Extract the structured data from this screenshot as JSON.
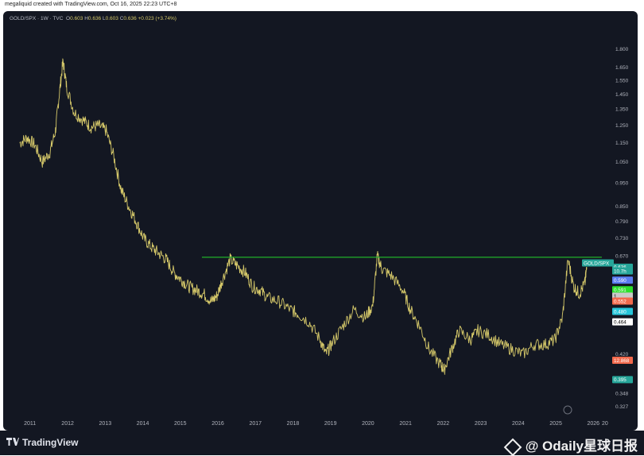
{
  "header": {
    "attribution": "megaliquid created with TradingView.com, Oct 16, 2025 22:23 UTC+8"
  },
  "legend": {
    "symbol": "GOLD/SPX · 1W · TVC",
    "open_label": "O",
    "open": "0.603",
    "high_label": "H",
    "high": "0.636",
    "low_label": "L",
    "low": "0.603",
    "close_label": "C",
    "close": "0.636",
    "change": "+0.023 (+3.74%)"
  },
  "footer": {
    "brand": "TradingView",
    "watermark": "@ Odaily星球日报"
  },
  "colors": {
    "background": "#131722",
    "price_line": "#d6c96a",
    "resistance": "#22c02a",
    "axis_text": "#b2b5be"
  },
  "chart_data": {
    "type": "line",
    "title": "",
    "symbol": "GOLD/SPX",
    "interval": "1W",
    "xlabel": "",
    "ylabel": "",
    "y_scale": "log",
    "ylim": [
      0.31,
      2.0
    ],
    "x_tick_labels": [
      "2011",
      "2012",
      "2013",
      "2014",
      "2015",
      "2016",
      "2017",
      "2018",
      "2019",
      "2020",
      "2021",
      "2022",
      "2023",
      "2024",
      "2025",
      "2026",
      "20"
    ],
    "y_tick_labels": [
      {
        "v": 1.8,
        "label": "1.800"
      },
      {
        "v": 1.65,
        "label": "1.650"
      },
      {
        "v": 1.55,
        "label": "1.550"
      },
      {
        "v": 1.45,
        "label": "1.450"
      },
      {
        "v": 1.35,
        "label": "1.350"
      },
      {
        "v": 1.25,
        "label": "1.250"
      },
      {
        "v": 1.15,
        "label": "1.150"
      },
      {
        "v": 1.05,
        "label": "1.050"
      },
      {
        "v": 0.95,
        "label": "0.950"
      },
      {
        "v": 0.85,
        "label": "0.850"
      },
      {
        "v": 0.79,
        "label": "0.790"
      },
      {
        "v": 0.73,
        "label": "0.730"
      },
      {
        "v": 0.67,
        "label": "0.670"
      },
      {
        "v": 0.42,
        "label": "0.420"
      },
      {
        "v": 0.348,
        "label": "0.348"
      },
      {
        "v": 0.327,
        "label": "0.327"
      }
    ],
    "series": [
      {
        "values": [
          {
            "x": 2010.7,
            "y": 1.15
          },
          {
            "x": 2010.9,
            "y": 1.18
          },
          {
            "x": 2011.1,
            "y": 1.14
          },
          {
            "x": 2011.3,
            "y": 1.05
          },
          {
            "x": 2011.5,
            "y": 1.1
          },
          {
            "x": 2011.65,
            "y": 1.22
          },
          {
            "x": 2011.75,
            "y": 1.45
          },
          {
            "x": 2011.85,
            "y": 1.7
          },
          {
            "x": 2011.95,
            "y": 1.5
          },
          {
            "x": 2012.15,
            "y": 1.33
          },
          {
            "x": 2012.4,
            "y": 1.28
          },
          {
            "x": 2012.6,
            "y": 1.24
          },
          {
            "x": 2012.8,
            "y": 1.25
          },
          {
            "x": 2013.0,
            "y": 1.22
          },
          {
            "x": 2013.2,
            "y": 1.08
          },
          {
            "x": 2013.4,
            "y": 0.92
          },
          {
            "x": 2013.6,
            "y": 0.85
          },
          {
            "x": 2013.8,
            "y": 0.79
          },
          {
            "x": 2014.0,
            "y": 0.73
          },
          {
            "x": 2014.2,
            "y": 0.7
          },
          {
            "x": 2014.4,
            "y": 0.68
          },
          {
            "x": 2014.6,
            "y": 0.66
          },
          {
            "x": 2014.8,
            "y": 0.62
          },
          {
            "x": 2015.0,
            "y": 0.6
          },
          {
            "x": 2015.2,
            "y": 0.58
          },
          {
            "x": 2015.4,
            "y": 0.57
          },
          {
            "x": 2015.6,
            "y": 0.56
          },
          {
            "x": 2015.8,
            "y": 0.54
          },
          {
            "x": 2015.95,
            "y": 0.555
          },
          {
            "x": 2016.1,
            "y": 0.6
          },
          {
            "x": 2016.3,
            "y": 0.66
          },
          {
            "x": 2016.5,
            "y": 0.64
          },
          {
            "x": 2016.7,
            "y": 0.62
          },
          {
            "x": 2016.9,
            "y": 0.58
          },
          {
            "x": 2017.1,
            "y": 0.57
          },
          {
            "x": 2017.3,
            "y": 0.55
          },
          {
            "x": 2017.6,
            "y": 0.54
          },
          {
            "x": 2017.9,
            "y": 0.52
          },
          {
            "x": 2018.1,
            "y": 0.51
          },
          {
            "x": 2018.4,
            "y": 0.49
          },
          {
            "x": 2018.7,
            "y": 0.45
          },
          {
            "x": 2018.85,
            "y": 0.42
          },
          {
            "x": 2019.0,
            "y": 0.44
          },
          {
            "x": 2019.3,
            "y": 0.48
          },
          {
            "x": 2019.6,
            "y": 0.52
          },
          {
            "x": 2019.9,
            "y": 0.5
          },
          {
            "x": 2020.1,
            "y": 0.53
          },
          {
            "x": 2020.22,
            "y": 0.67
          },
          {
            "x": 2020.35,
            "y": 0.63
          },
          {
            "x": 2020.6,
            "y": 0.61
          },
          {
            "x": 2020.9,
            "y": 0.57
          },
          {
            "x": 2021.1,
            "y": 0.52
          },
          {
            "x": 2021.35,
            "y": 0.48
          },
          {
            "x": 2021.6,
            "y": 0.43
          },
          {
            "x": 2021.9,
            "y": 0.4
          },
          {
            "x": 2022.0,
            "y": 0.39
          },
          {
            "x": 2022.2,
            "y": 0.43
          },
          {
            "x": 2022.4,
            "y": 0.47
          },
          {
            "x": 2022.7,
            "y": 0.45
          },
          {
            "x": 2022.9,
            "y": 0.47
          },
          {
            "x": 2023.2,
            "y": 0.46
          },
          {
            "x": 2023.5,
            "y": 0.44
          },
          {
            "x": 2023.8,
            "y": 0.43
          },
          {
            "x": 2024.1,
            "y": 0.42
          },
          {
            "x": 2024.4,
            "y": 0.44
          },
          {
            "x": 2024.7,
            "y": 0.44
          },
          {
            "x": 2024.95,
            "y": 0.45
          },
          {
            "x": 2025.15,
            "y": 0.5
          },
          {
            "x": 2025.3,
            "y": 0.66
          },
          {
            "x": 2025.45,
            "y": 0.58
          },
          {
            "x": 2025.6,
            "y": 0.56
          },
          {
            "x": 2025.75,
            "y": 0.59
          },
          {
            "x": 2025.8,
            "y": 0.636
          }
        ]
      }
    ],
    "resistance_line": {
      "value": 0.667,
      "x_start": 2015.55,
      "x_end": 2026.2
    },
    "price_tags": [
      {
        "label": "GOLD/SPX",
        "value": 0.649,
        "color": "#26a69a",
        "text_color": "#ffffff"
      },
      {
        "label": "0.636",
        "value": 0.636,
        "color": "#26a69a",
        "text_color": "#ffffff"
      },
      {
        "label": "10.7h",
        "value": 0.625,
        "color": "#26a69a",
        "text_color": "#ffffff"
      },
      {
        "label": "0.590",
        "value": 0.598,
        "color": "#5b7cf0",
        "text_color": "#ffffff"
      },
      {
        "label": "0.591",
        "value": 0.571,
        "color": "#2ce02c",
        "text_color": "#ffffff"
      },
      {
        "label": "1",
        "value": 0.554,
        "color": "#c9c9c9",
        "text_color": "#000000"
      },
      {
        "label": "0.552",
        "value": 0.541,
        "color": "#f2694c",
        "text_color": "#ffffff"
      },
      {
        "label": "0.480",
        "value": 0.515,
        "color": "#26c6da",
        "text_color": "#ffffff"
      },
      {
        "label": "0.464",
        "value": 0.49,
        "color": "#ffffff",
        "text_color": "#000000"
      },
      {
        "label": "12.868",
        "value": 0.408,
        "color": "#f2694c",
        "text_color": "#ffffff"
      },
      {
        "label": "0.395",
        "value": 0.372,
        "color": "#26a69a",
        "text_color": "#ffffff"
      }
    ],
    "grid": false,
    "legend": "top-left"
  }
}
